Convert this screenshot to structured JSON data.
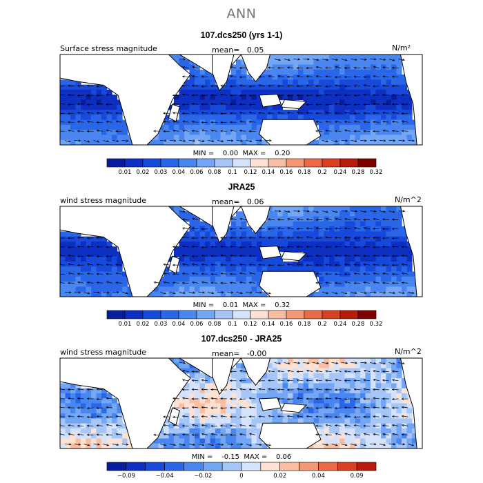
{
  "page": {
    "title": "ANN"
  },
  "colors": {
    "palette": [
      "#081d9c",
      "#0d2fc2",
      "#1749db",
      "#2a66e8",
      "#4a86f0",
      "#73a6f5",
      "#a5c6f7",
      "#d4e3fb",
      "#fde1d2",
      "#f9bea2",
      "#f39774",
      "#ea6a47",
      "#d84020",
      "#b81b0b",
      "#7c0000"
    ],
    "land": "#ffffff",
    "coast": "#000000",
    "vector": "#000000"
  },
  "chart_data": [
    {
      "type": "heatmap",
      "title": "107.dcs250 (yrs 1-1)",
      "field_label": "Surface stress magnitude",
      "mean_label": "mean=",
      "mean_value": "0.05",
      "units": "N/m²",
      "min_label": "MIN =",
      "min_value": "0.00",
      "max_label": "MAX =",
      "max_value": "0.20",
      "min": 0.0,
      "max": 0.2,
      "mean": 0.05,
      "colorbar_ticks": [
        "0.01",
        "0.02",
        "0.03",
        "0.04",
        "0.06",
        "0.08",
        "0.1",
        "0.12",
        "0.14",
        "0.16",
        "0.18",
        "0.2",
        "0.24",
        "0.28",
        "0.32"
      ],
      "levels": [
        0.01,
        0.02,
        0.03,
        0.04,
        0.06,
        0.08,
        0.1,
        0.12,
        0.14,
        0.16,
        0.18,
        0.2,
        0.24,
        0.28,
        0.32
      ],
      "overlay": "wind stress vectors",
      "map_extent": {
        "lon": [
          0,
          360
        ],
        "lat": [
          -30,
          30
        ]
      }
    },
    {
      "type": "heatmap",
      "title": "JRA25",
      "field_label": "wind stress magnitude",
      "mean_label": "mean=",
      "mean_value": "0.06",
      "units": "N/m^2",
      "min_label": "MIN =",
      "min_value": "0.01",
      "max_label": "MAX =",
      "max_value": "0.32",
      "min": 0.01,
      "max": 0.32,
      "mean": 0.06,
      "colorbar_ticks": [
        "0.01",
        "0.02",
        "0.03",
        "0.04",
        "0.06",
        "0.08",
        "0.1",
        "0.12",
        "0.14",
        "0.16",
        "0.18",
        "0.2",
        "0.24",
        "0.28",
        "0.32"
      ],
      "levels": [
        0.01,
        0.02,
        0.03,
        0.04,
        0.06,
        0.08,
        0.1,
        0.12,
        0.14,
        0.16,
        0.18,
        0.2,
        0.24,
        0.28,
        0.32
      ],
      "overlay": "wind stress vectors",
      "map_extent": {
        "lon": [
          0,
          360
        ],
        "lat": [
          -30,
          30
        ]
      }
    },
    {
      "type": "heatmap",
      "title": "107.dcs250 - JRA25",
      "field_label": "wind stress magnitude",
      "mean_label": "mean=",
      "mean_value": "-0.00",
      "units": "N/m^2",
      "min_label": "MIN =",
      "min_value": "-0.15",
      "max_label": "MAX =",
      "max_value": "0.06",
      "min": -0.15,
      "max": 0.06,
      "mean": -0.0,
      "colorbar_ticks": [
        "-0.09",
        "",
        "-0.04",
        "",
        "-0.02",
        "",
        "0",
        "",
        "0.02",
        "",
        "0.04",
        "",
        "0.09",
        ""
      ],
      "levels": [
        -0.09,
        -0.06,
        -0.04,
        -0.03,
        -0.02,
        -0.01,
        0,
        0.01,
        0.02,
        0.03,
        0.04,
        0.06,
        0.09,
        0.12
      ],
      "overlay": "wind stress vector differences",
      "map_extent": {
        "lon": [
          0,
          360
        ],
        "lat": [
          -30,
          30
        ]
      }
    }
  ]
}
